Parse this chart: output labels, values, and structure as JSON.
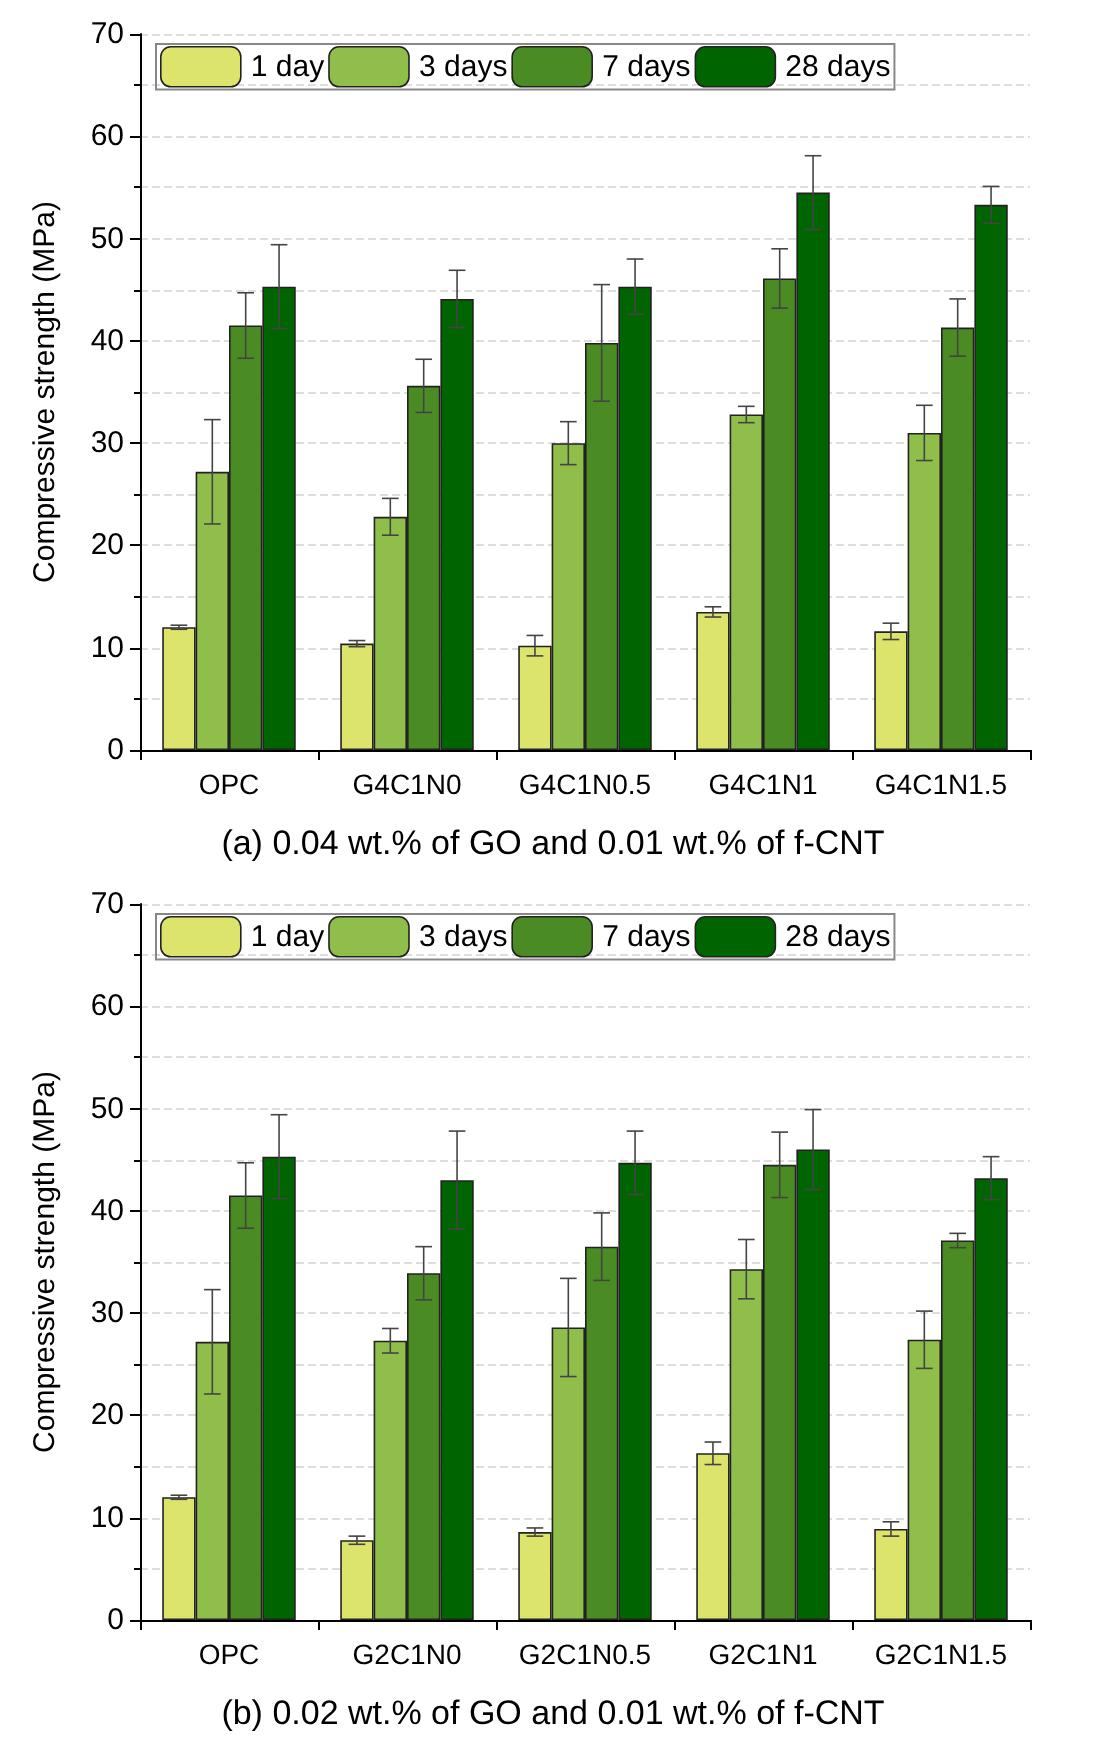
{
  "chart_data": [
    {
      "type": "bar",
      "title": "(a) 0.04 wt.% of GO and 0.01 wt.% of f-CNT",
      "ylabel": "Compressive strength (MPa)",
      "categories": [
        "OPC",
        "G4C1N0",
        "G4C1N0.5",
        "G4C1N1",
        "G4C1N1.5"
      ],
      "series": [
        {
          "name": "1 day",
          "color": "#dde46b",
          "values": [
            12.0,
            10.4,
            10.2,
            13.5,
            11.6
          ],
          "errors": [
            0.2,
            0.3,
            1.0,
            0.5,
            0.8
          ]
        },
        {
          "name": "3 days",
          "color": "#8fbf4a",
          "values": [
            27.2,
            22.8,
            30.0,
            32.8,
            31.0
          ],
          "errors": [
            5.1,
            1.8,
            2.1,
            0.8,
            2.7
          ]
        },
        {
          "name": "7 days",
          "color": "#4a8c23",
          "values": [
            41.5,
            35.6,
            39.8,
            46.1,
            41.3
          ],
          "errors": [
            3.2,
            2.6,
            5.7,
            2.9,
            2.8
          ]
        },
        {
          "name": "28 days",
          "color": "#006400",
          "values": [
            45.3,
            44.1,
            45.3,
            54.5,
            53.3
          ],
          "errors": [
            4.1,
            2.8,
            2.7,
            3.6,
            1.8
          ]
        }
      ],
      "ylim": [
        0,
        70
      ],
      "yticks": [
        0,
        10,
        20,
        30,
        40,
        50,
        60,
        70
      ],
      "grid": "y",
      "legend": "top"
    },
    {
      "type": "bar",
      "title": "(b) 0.02 wt.% of GO and 0.01 wt.% of f-CNT",
      "ylabel": "Compressive strength (MPa)",
      "categories": [
        "OPC",
        "G2C1N0",
        "G2C1N0.5",
        "G2C1N1",
        "G2C1N1.5"
      ],
      "series": [
        {
          "name": "1 day",
          "color": "#dde46b",
          "values": [
            12.0,
            7.8,
            8.6,
            16.3,
            8.9
          ],
          "errors": [
            0.2,
            0.4,
            0.4,
            1.1,
            0.7
          ]
        },
        {
          "name": "3 days",
          "color": "#8fbf4a",
          "values": [
            27.2,
            27.3,
            28.6,
            34.3,
            27.4
          ],
          "errors": [
            5.1,
            1.2,
            4.8,
            2.9,
            2.8
          ]
        },
        {
          "name": "7 days",
          "color": "#4a8c23",
          "values": [
            41.5,
            33.9,
            36.5,
            44.5,
            37.1
          ],
          "errors": [
            3.2,
            2.6,
            3.3,
            3.2,
            0.7
          ]
        },
        {
          "name": "28 days",
          "color": "#006400",
          "values": [
            45.3,
            43.0,
            44.7,
            46.0,
            43.2
          ],
          "errors": [
            4.1,
            4.8,
            3.1,
            3.9,
            2.1
          ]
        }
      ],
      "ylim": [
        0,
        70
      ],
      "yticks": [
        0,
        10,
        20,
        30,
        40,
        50,
        60,
        70
      ],
      "grid": "y",
      "legend": "top"
    }
  ]
}
